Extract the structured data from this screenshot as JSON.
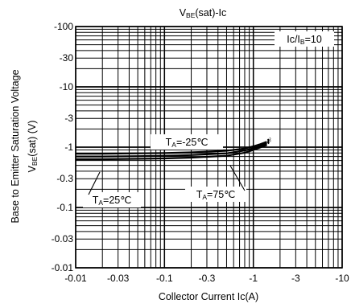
{
  "chart_data": {
    "type": "line",
    "title": {
      "main": "V",
      "sub": "BE",
      "rest": "(sat)-Ic"
    },
    "xlabel": "Collector Current Ic(A)",
    "ylabel": {
      "line1": "Base to Emitter Saturation Voltage",
      "line2_main": "V",
      "line2_sub": "BE",
      "line2_rest": "(sat) (V)"
    },
    "x_scale": "log",
    "y_scale": "log",
    "xlim": [
      -0.01,
      -10
    ],
    "ylim": [
      -0.01,
      -100
    ],
    "grid": true,
    "x_ticks": [
      "-0.01",
      "-0.03",
      "-0.1",
      "-0.3",
      "-1",
      "-3",
      "-10"
    ],
    "y_ticks": [
      "-0.01",
      "-0.03",
      "-0.1",
      "-0.3",
      "-1",
      "-3",
      "-10",
      "-30",
      "-100"
    ],
    "condition": {
      "main": "Ic/I",
      "sub": "B",
      "rest": "=10"
    },
    "series": [
      {
        "name_main": "T",
        "name_sub": "A",
        "name_rest": "=-25℃",
        "x": [
          -0.01,
          -0.02,
          -0.05,
          -0.1,
          -0.2,
          -0.5,
          -0.8,
          -1.0,
          -1.2,
          -1.4
        ],
        "y": [
          -0.78,
          -0.78,
          -0.79,
          -0.8,
          -0.82,
          -0.87,
          -0.95,
          -1.03,
          -1.12,
          -1.22
        ]
      },
      {
        "name_main": "T",
        "name_sub": "A",
        "name_rest": "=25℃",
        "x": [
          -0.01,
          -0.02,
          -0.05,
          -0.1,
          -0.2,
          -0.5,
          -0.8,
          -1.0,
          -1.2,
          -1.4
        ],
        "y": [
          -0.7,
          -0.7,
          -0.71,
          -0.72,
          -0.74,
          -0.79,
          -0.88,
          -0.96,
          -1.05,
          -1.15
        ]
      },
      {
        "name_main": "T",
        "name_sub": "A",
        "name_rest": "=75℃",
        "x": [
          -0.01,
          -0.02,
          -0.05,
          -0.1,
          -0.2,
          -0.5,
          -0.8,
          -1.0,
          -1.2,
          -1.4
        ],
        "y": [
          -0.63,
          -0.63,
          -0.64,
          -0.65,
          -0.67,
          -0.72,
          -0.81,
          -0.9,
          -0.99,
          -1.09
        ]
      }
    ]
  }
}
